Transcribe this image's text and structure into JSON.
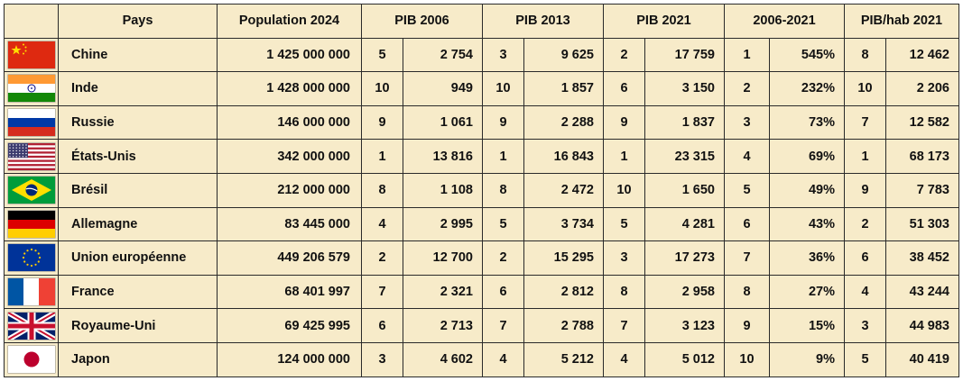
{
  "headers": {
    "pays": "Pays",
    "population": "Population 2024",
    "pib2006": "PIB 2006",
    "pib2013": "PIB 2013",
    "pib2021": "PIB 2021",
    "croissance": "2006-2021",
    "pibhab": "PIB/hab 2021"
  },
  "rows": [
    {
      "flag": "china-flag-icon",
      "name": "Chine",
      "population": "1 425 000 000",
      "r2006": "5",
      "v2006": "2 754",
      "r2013": "3",
      "v2013": "9 625",
      "r2021": "2",
      "v2021": "17 759",
      "rg": "1",
      "growth": "545%",
      "rh": "8",
      "vh": "12 462"
    },
    {
      "flag": "india-flag-icon",
      "name": "Inde",
      "population": "1 428 000 000",
      "r2006": "10",
      "v2006": "949",
      "r2013": "10",
      "v2013": "1 857",
      "r2021": "6",
      "v2021": "3 150",
      "rg": "2",
      "growth": "232%",
      "rh": "10",
      "vh": "2 206"
    },
    {
      "flag": "russia-flag-icon",
      "name": "Russie",
      "population": "146 000 000",
      "r2006": "9",
      "v2006": "1 061",
      "r2013": "9",
      "v2013": "2 288",
      "r2021": "9",
      "v2021": "1 837",
      "rg": "3",
      "growth": "73%",
      "rh": "7",
      "vh": "12 582"
    },
    {
      "flag": "usa-flag-icon",
      "name": "États-Unis",
      "population": "342 000 000",
      "r2006": "1",
      "v2006": "13 816",
      "r2013": "1",
      "v2013": "16 843",
      "r2021": "1",
      "v2021": "23 315",
      "rg": "4",
      "growth": "69%",
      "rh": "1",
      "vh": "68 173"
    },
    {
      "flag": "brazil-flag-icon",
      "name": "Brésil",
      "population": "212 000 000",
      "r2006": "8",
      "v2006": "1 108",
      "r2013": "8",
      "v2013": "2 472",
      "r2021": "10",
      "v2021": "1 650",
      "rg": "5",
      "growth": "49%",
      "rh": "9",
      "vh": "7 783"
    },
    {
      "flag": "germany-flag-icon",
      "name": "Allemagne",
      "population": "83 445 000",
      "r2006": "4",
      "v2006": "2 995",
      "r2013": "5",
      "v2013": "3 734",
      "r2021": "5",
      "v2021": "4 281",
      "rg": "6",
      "growth": "43%",
      "rh": "2",
      "vh": "51 303"
    },
    {
      "flag": "eu-flag-icon",
      "name": "Union européenne",
      "population": "449 206 579",
      "r2006": "2",
      "v2006": "12 700",
      "r2013": "2",
      "v2013": "15 295",
      "r2021": "3",
      "v2021": "17 273",
      "rg": "7",
      "growth": "36%",
      "rh": "6",
      "vh": "38 452"
    },
    {
      "flag": "france-flag-icon",
      "name": "France",
      "population": "68 401 997",
      "r2006": "7",
      "v2006": "2 321",
      "r2013": "6",
      "v2013": "2 812",
      "r2021": "8",
      "v2021": "2 958",
      "rg": "8",
      "growth": "27%",
      "rh": "4",
      "vh": "43 244"
    },
    {
      "flag": "uk-flag-icon",
      "name": "Royaume-Uni",
      "population": "69 425 995",
      "r2006": "6",
      "v2006": "2 713",
      "r2013": "7",
      "v2013": "2 788",
      "r2021": "7",
      "v2021": "3 123",
      "rg": "9",
      "growth": "15%",
      "rh": "3",
      "vh": "44 983"
    },
    {
      "flag": "japan-flag-icon",
      "name": "Japon",
      "population": "124 000 000",
      "r2006": "3",
      "v2006": "4 602",
      "r2013": "4",
      "v2013": "5 212",
      "r2021": "4",
      "v2021": "5 012",
      "rg": "10",
      "growth": "9%",
      "rh": "5",
      "vh": "40 419"
    }
  ]
}
